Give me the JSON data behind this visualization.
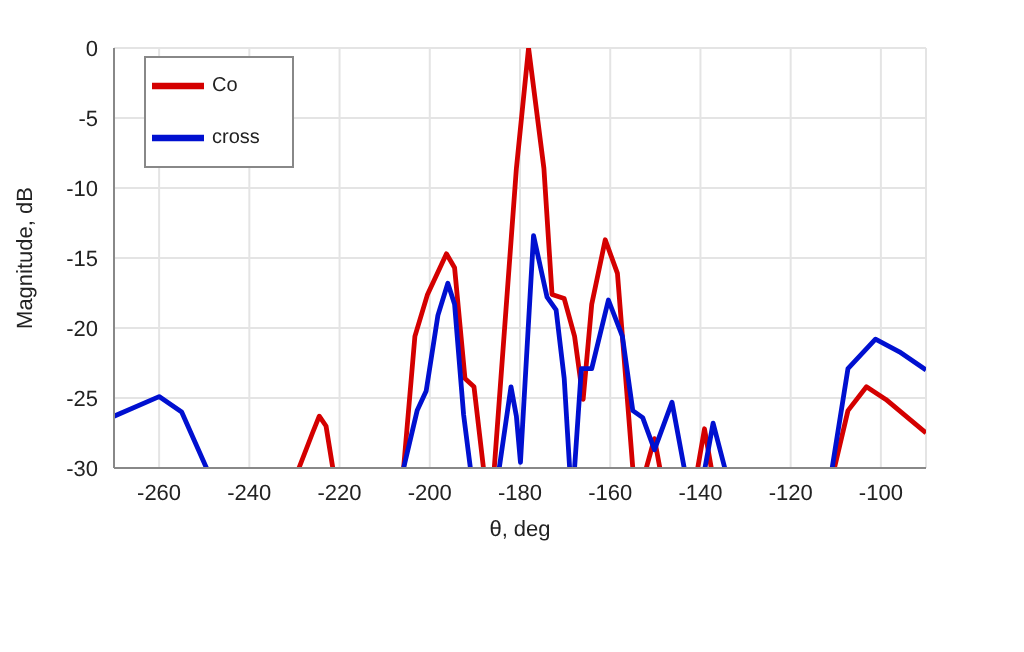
{
  "chart_data": {
    "type": "line",
    "xlabel": "θ, deg",
    "ylabel": "Magnitude, dB",
    "xlim": [
      -270,
      -90
    ],
    "xticks": [
      -260,
      -240,
      -220,
      -200,
      -180,
      -160,
      -140,
      -120,
      -100
    ],
    "ylim": [
      -30,
      0
    ],
    "yticks": [
      -30,
      -25,
      -20,
      -15,
      -10,
      -5,
      0
    ],
    "grid": true,
    "legend": "top left",
    "marker": "none",
    "line_style": "solid",
    "series": [
      {
        "name": "Co",
        "color": "#d40000",
        "x": [
          -229,
          -226,
          -224.5,
          -223,
          -221.5,
          -213,
          -205.8,
          -203.3,
          -200.5,
          -196.3,
          -194.5,
          -192.2,
          -190.2,
          -188.1,
          -187,
          -185.7,
          -180.8,
          -178.1,
          -174.7,
          -172.9,
          -170.2,
          -167.9,
          -166,
          -164.1,
          -161.1,
          -158.4,
          -155,
          -153.5,
          -152,
          -150.2,
          -149,
          -145,
          -140.6,
          -139.1,
          -137.6,
          -124,
          -110.3,
          -107.3,
          -103.2,
          -98.9,
          -90
        ],
        "values": [
          -30,
          -27.5,
          -26.3,
          -27,
          -30,
          null,
          -30,
          -20.6,
          -17.6,
          -14.7,
          -15.7,
          -23.6,
          -24.2,
          -30,
          null,
          -30,
          -8.6,
          0,
          -8.6,
          -17.6,
          -17.9,
          -20.6,
          -25.1,
          -18.3,
          -13.7,
          -16.1,
          -30,
          null,
          -30,
          -27.9,
          -30,
          null,
          -30,
          -27.2,
          -30,
          null,
          -30,
          -25.9,
          -24.2,
          -25.1,
          -27.5
        ]
      },
      {
        "name": "cross",
        "color": "#0010d0",
        "x": [
          -270,
          -260,
          -255,
          -249.5,
          -228,
          -205.8,
          -202.8,
          -200.8,
          -198.2,
          -196,
          -194.5,
          -192.5,
          -191,
          -188,
          -184.6,
          -182,
          -180.8,
          -179.9,
          -177,
          -174,
          -172,
          -170.2,
          -169,
          -168.5,
          -167.9,
          -166.4,
          -164.1,
          -160.4,
          -157.3,
          -155,
          -152.8,
          -150.2,
          -146.3,
          -143.6,
          -141,
          -139,
          -137.2,
          -134.6,
          -122,
          -110.8,
          -107.3,
          -101.2,
          -95.9,
          -90
        ],
        "values": [
          -26.3,
          -24.9,
          -26,
          -30,
          null,
          -30,
          -25.9,
          -24.5,
          -19.1,
          -16.8,
          -18.3,
          -26.2,
          -30,
          null,
          -30,
          -24.2,
          -26.3,
          -29.6,
          -13.4,
          -17.8,
          -18.7,
          -23.6,
          -30,
          null,
          -30,
          -22.9,
          -22.9,
          -18,
          -20.6,
          -25.9,
          -26.4,
          -28.7,
          -25.3,
          -30,
          null,
          -30,
          -26.8,
          -30,
          null,
          -30,
          -22.9,
          -20.8,
          -21.7,
          -23
        ]
      }
    ]
  }
}
